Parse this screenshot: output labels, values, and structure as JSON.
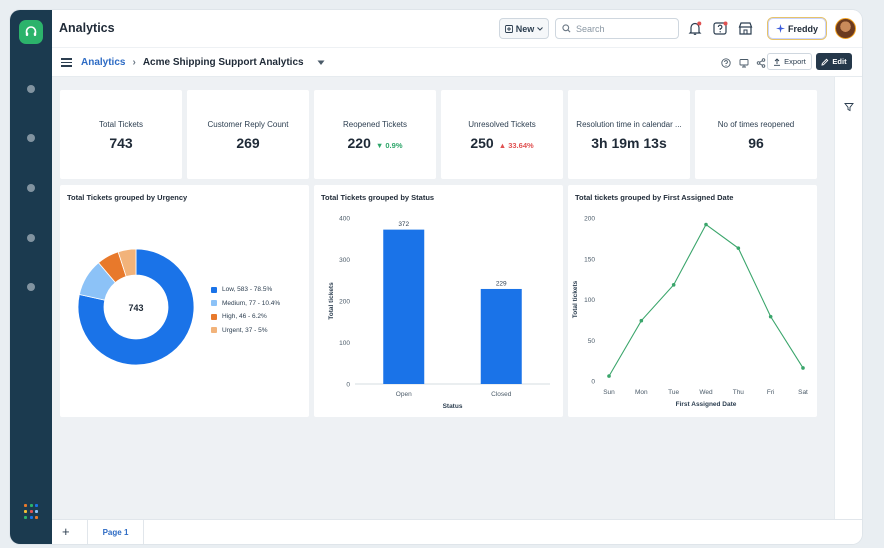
{
  "app": {
    "title": "Analytics",
    "new_label": "New",
    "search_placeholder": "Search",
    "freddy_label": "Freddy"
  },
  "breadcrumb": {
    "root": "Analytics",
    "separator": "›",
    "current": "Acme Shipping Support Analytics"
  },
  "toolbar": {
    "export_label": "Export",
    "edit_label": "Edit"
  },
  "metrics": [
    {
      "label": "Total Tickets",
      "value": "743",
      "change": "",
      "direction": ""
    },
    {
      "label": "Customer Reply Count",
      "value": "269",
      "change": "",
      "direction": ""
    },
    {
      "label": "Reopened Tickets",
      "value": "220",
      "change": "0.9%",
      "direction": "down"
    },
    {
      "label": "Unresolved Tickets",
      "value": "250",
      "change": "33.64%",
      "direction": "up"
    },
    {
      "label": "Resolution time in calendar ...",
      "value": "3h 19m 13s",
      "change": "",
      "direction": ""
    },
    {
      "label": "No of times reopened",
      "value": "96",
      "change": "",
      "direction": ""
    }
  ],
  "colors": {
    "accent": "#2d6bc4",
    "bar": "#1a73e8",
    "line": "#3aa56b",
    "down": "#2ea66a",
    "up": "#e05252",
    "rail": "#1b3a4f"
  },
  "chart_data": [
    {
      "type": "pie",
      "title": "Total Tickets grouped by Urgency",
      "center_label": "743",
      "categories": [
        "Low",
        "Medium",
        "High",
        "Urgent"
      ],
      "values": [
        583,
        77,
        46,
        37
      ],
      "colors": [
        "#1a73e8",
        "#8cc2f7",
        "#e8792b",
        "#f2b37a"
      ],
      "legend": [
        "Low, 583 - 78.5%",
        "Medium, 77 - 10.4%",
        "High, 46 - 6.2%",
        "Urgent, 37 - 5%"
      ],
      "legend_position": "right"
    },
    {
      "type": "bar",
      "title": "Total Tickets grouped by Status",
      "categories": [
        "Open",
        "Closed"
      ],
      "values": [
        372,
        229
      ],
      "xlabel": "Status",
      "ylabel": "Total tickets",
      "ylim": [
        0,
        400
      ],
      "yticks": [
        "0",
        "100",
        "200",
        "300",
        "400"
      ],
      "grid": false
    },
    {
      "type": "line",
      "title": "Total tickets grouped by First Assigned Date",
      "categories": [
        "Sun",
        "Mon",
        "Tue",
        "Wed",
        "Thu",
        "Fri",
        "Sat"
      ],
      "values": [
        6,
        74,
        118,
        192,
        163,
        79,
        16
      ],
      "xlabel": "First Assigned Date",
      "ylabel": "Total tickets",
      "ylim": [
        0,
        200
      ],
      "yticks": [
        "0",
        "50",
        "100",
        "150",
        "200"
      ],
      "grid": false
    }
  ],
  "pages": {
    "add_label": "+",
    "tabs": [
      "Page 1"
    ]
  }
}
